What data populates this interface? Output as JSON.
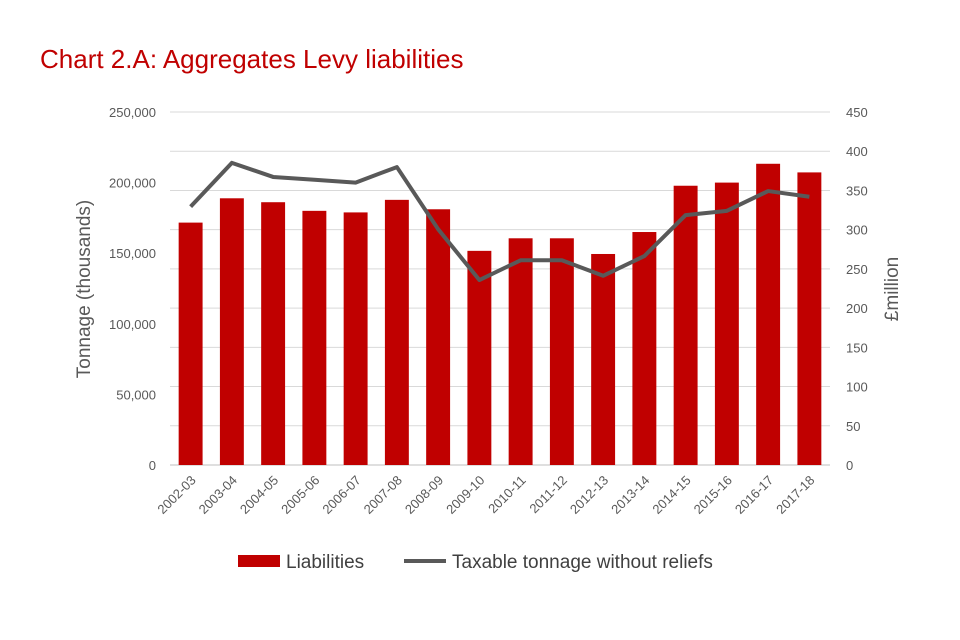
{
  "chart_data": {
    "type": "bar",
    "title": "Chart 2.A: Aggregates Levy liabilities",
    "categories": [
      "2002-03",
      "2003-04",
      "2004-05",
      "2005-06",
      "2006-07",
      "2007-08",
      "2008-09",
      "2009-10",
      "2010-11",
      "2011-12",
      "2012-13",
      "2013-14",
      "2014-15",
      "2015-16",
      "2016-17",
      "2017-18"
    ],
    "series": [
      {
        "name": "Liabilities",
        "kind": "bar",
        "axis": "right",
        "color": "#c00000",
        "values": [
          309,
          340,
          335,
          324,
          322,
          338,
          326,
          273,
          289,
          289,
          269,
          297,
          356,
          360,
          384,
          373
        ]
      },
      {
        "name": "Taxable tonnage without reliefs",
        "kind": "line",
        "axis": "left",
        "color": "#595959",
        "values": [
          183000,
          214000,
          204000,
          202000,
          200000,
          211000,
          167000,
          131000,
          145000,
          145000,
          134000,
          148000,
          177000,
          180000,
          194000,
          190000
        ]
      }
    ],
    "ylabel": "Tonnage (thousands)",
    "y2label": "£million",
    "ylim": [
      0,
      250000
    ],
    "y2lim": [
      0,
      450
    ],
    "yticks": [
      "0",
      "50,000",
      "100,000",
      "150,000",
      "200,000",
      "250,000"
    ],
    "y2ticks": [
      "0",
      "50",
      "100",
      "150",
      "200",
      "250",
      "300",
      "350",
      "400",
      "450"
    ],
    "grid": true,
    "legend": "bottom-center"
  }
}
